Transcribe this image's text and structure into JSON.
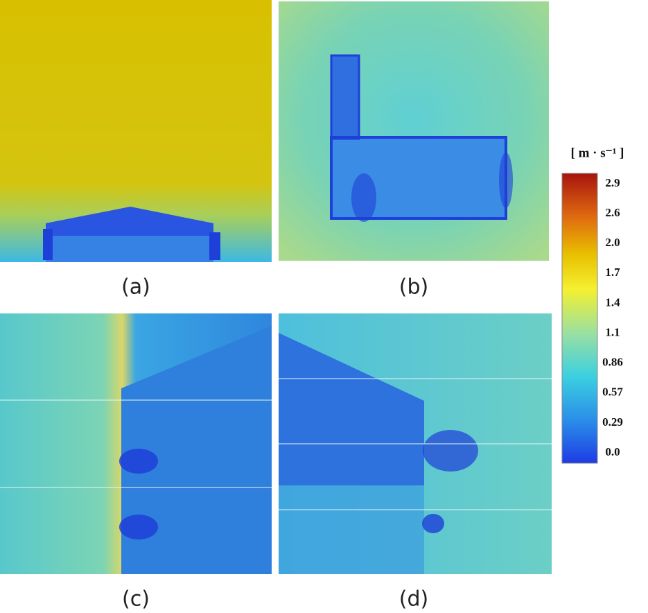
{
  "panels": [
    {
      "label": "(a)"
    },
    {
      "label": "(b)"
    },
    {
      "label": "(c)"
    },
    {
      "label": "(d)"
    }
  ],
  "colorbar": {
    "title": "[ m · s⁻¹ ]",
    "ticks": [
      "2.9",
      "2.6",
      "2.0",
      "1.7",
      "1.4",
      "1.1",
      "0.86",
      "0.57",
      "0.29",
      "0.0"
    ]
  }
}
